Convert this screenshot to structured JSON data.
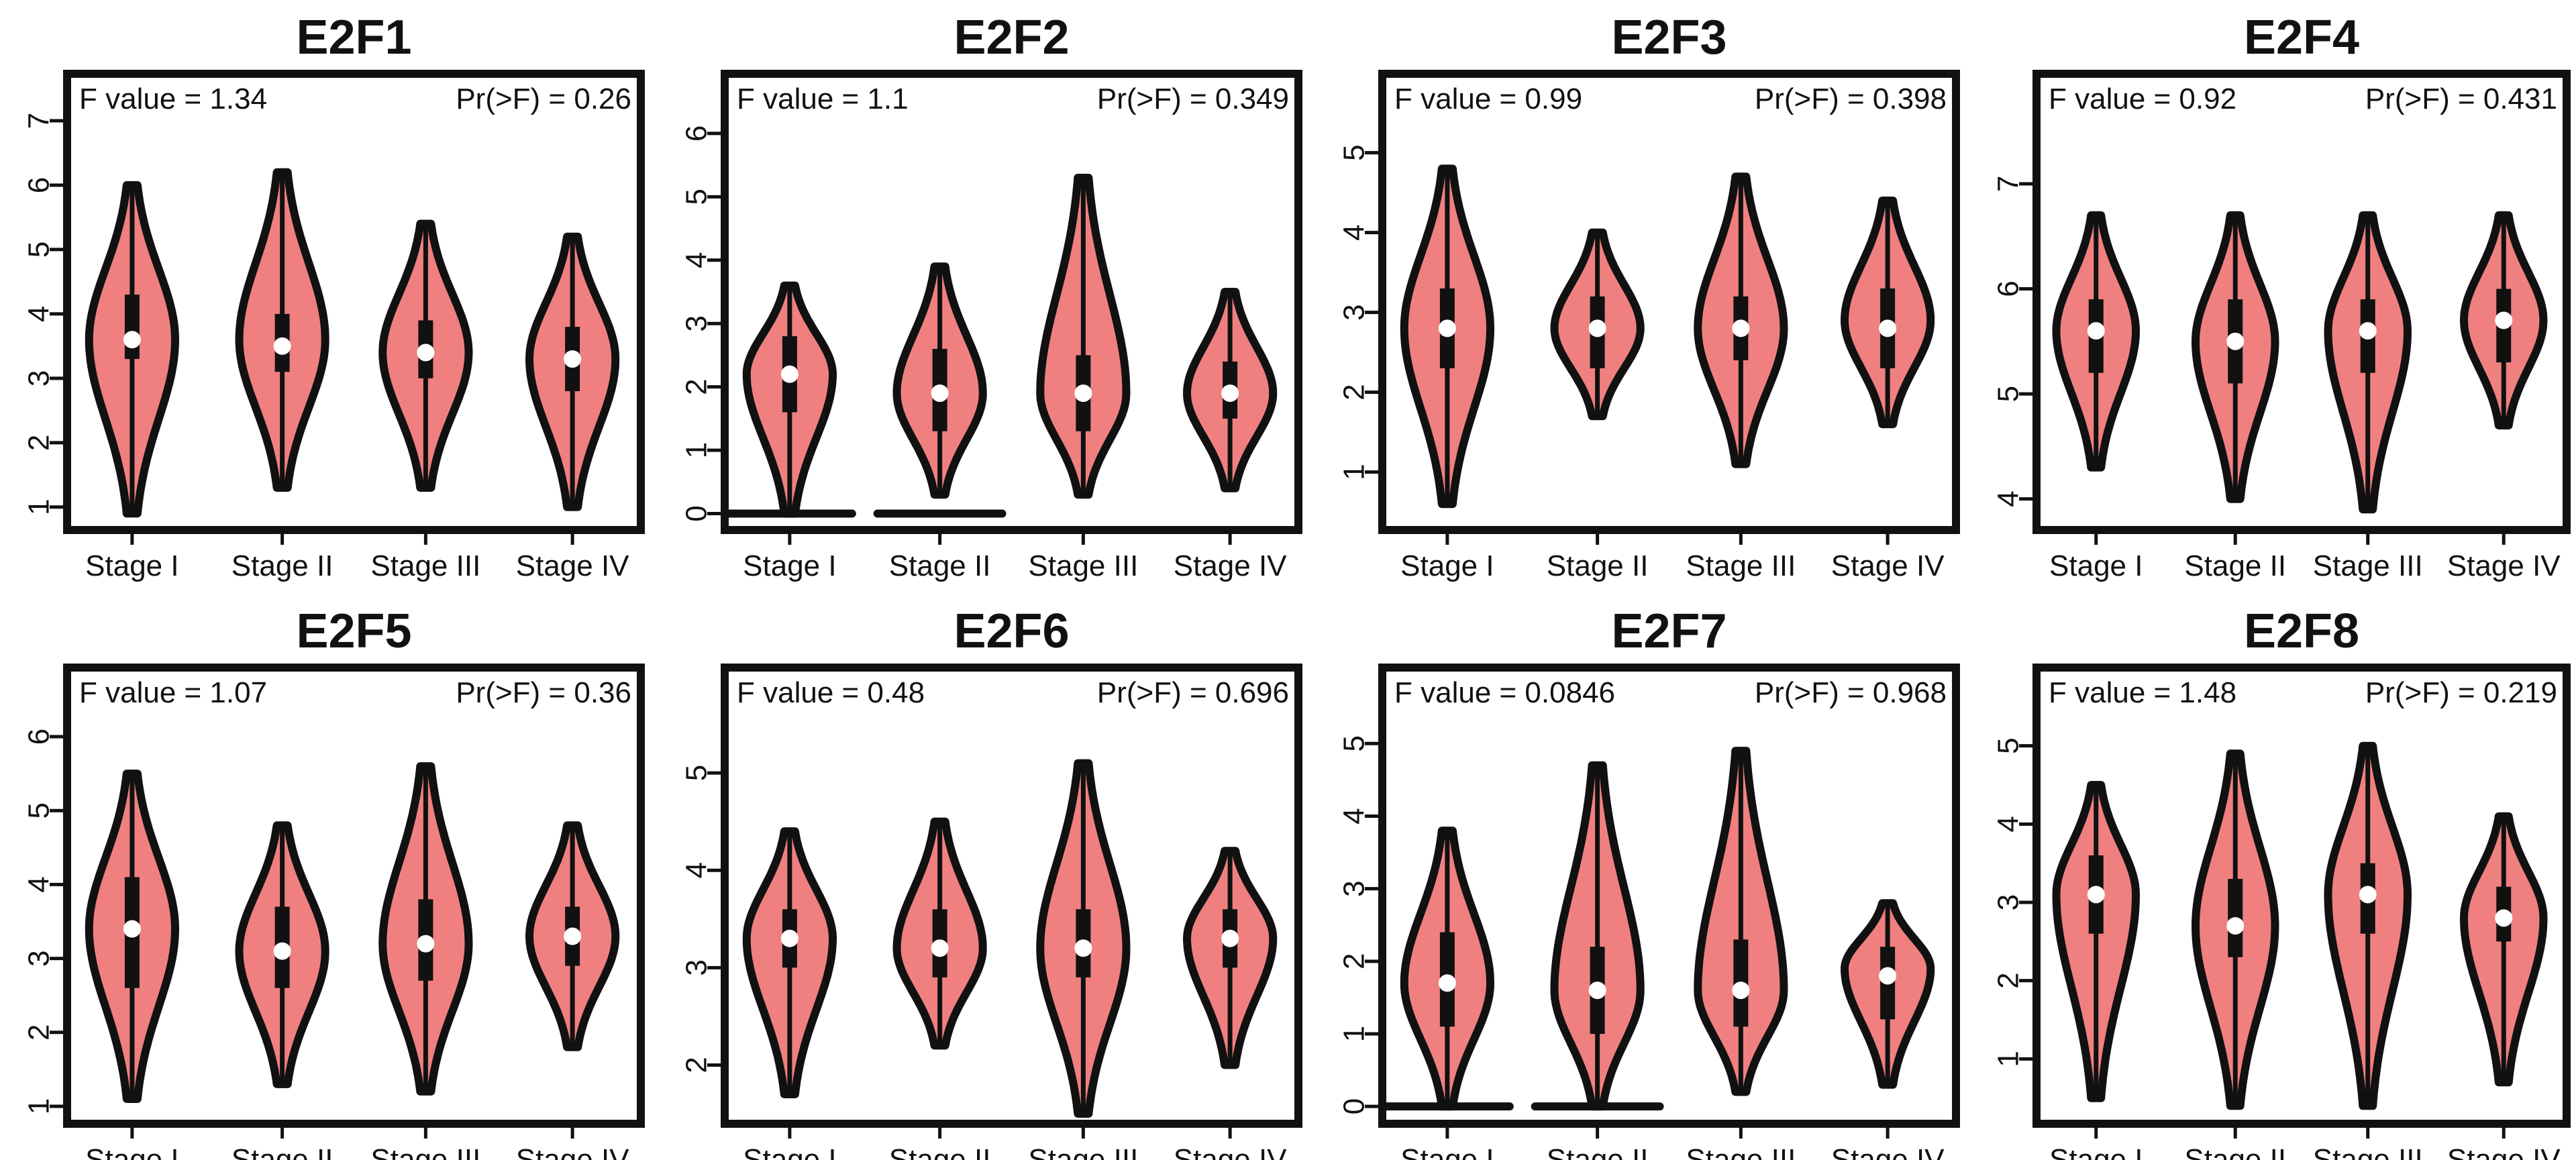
{
  "colors": {
    "violin_fill": "#F08080",
    "outline": "#111111",
    "median_dot": "#ffffff",
    "background": "#ffffff"
  },
  "chart_data": [
    {
      "type": "violin",
      "title": "E2F1",
      "ylim": [
        0.8,
        7
      ],
      "yticks": [
        1,
        2,
        3,
        4,
        5,
        6,
        7
      ],
      "categories": [
        "Stage I",
        "Stage II",
        "Stage III",
        "Stage IV"
      ],
      "f_value_label": "F value = 1.34",
      "pr_label": "Pr(>F) = 0.26",
      "violins": [
        {
          "min": 0.9,
          "max": 6.0,
          "q1": 3.3,
          "median": 3.6,
          "q3": 4.3,
          "peak": 3.6
        },
        {
          "min": 1.3,
          "max": 6.2,
          "q1": 3.1,
          "median": 3.5,
          "q3": 4.0,
          "peak": 3.6
        },
        {
          "min": 1.3,
          "max": 5.4,
          "q1": 3.0,
          "median": 3.4,
          "q3": 3.9,
          "peak": 3.4
        },
        {
          "min": 1.0,
          "max": 5.2,
          "q1": 2.8,
          "median": 3.3,
          "q3": 3.8,
          "peak": 3.3
        }
      ]
    },
    {
      "type": "violin",
      "title": "E2F2",
      "ylim": [
        -0.1,
        6.2
      ],
      "yticks": [
        0,
        1,
        2,
        3,
        4,
        5,
        6
      ],
      "categories": [
        "Stage I",
        "Stage II",
        "Stage III",
        "Stage IV"
      ],
      "f_value_label": "F value = 1.1",
      "pr_label": "Pr(>F) = 0.349",
      "violins": [
        {
          "min": 0.0,
          "max": 3.6,
          "q1": 1.6,
          "median": 2.2,
          "q3": 2.8,
          "peak": 2.2,
          "zero_bar": true
        },
        {
          "min": 0.3,
          "max": 3.9,
          "q1": 1.3,
          "median": 1.9,
          "q3": 2.6,
          "peak": 1.9,
          "zero_bar": true
        },
        {
          "min": 0.3,
          "max": 5.3,
          "q1": 1.3,
          "median": 1.9,
          "q3": 2.5,
          "peak": 1.9
        },
        {
          "min": 0.4,
          "max": 3.5,
          "q1": 1.5,
          "median": 1.9,
          "q3": 2.4,
          "peak": 1.9
        }
      ]
    },
    {
      "type": "violin",
      "title": "E2F3",
      "ylim": [
        0.4,
        5.4
      ],
      "yticks": [
        1,
        2,
        3,
        4,
        5
      ],
      "categories": [
        "Stage I",
        "Stage II",
        "Stage III",
        "Stage IV"
      ],
      "f_value_label": "F value = 0.99",
      "pr_label": "Pr(>F) = 0.398",
      "violins": [
        {
          "min": 0.6,
          "max": 4.8,
          "q1": 2.3,
          "median": 2.8,
          "q3": 3.3,
          "peak": 2.8
        },
        {
          "min": 1.7,
          "max": 4.0,
          "q1": 2.3,
          "median": 2.8,
          "q3": 3.2,
          "peak": 2.8
        },
        {
          "min": 1.1,
          "max": 4.7,
          "q1": 2.4,
          "median": 2.8,
          "q3": 3.2,
          "peak": 2.8
        },
        {
          "min": 1.6,
          "max": 4.4,
          "q1": 2.3,
          "median": 2.8,
          "q3": 3.3,
          "peak": 2.9
        }
      ]
    },
    {
      "type": "violin",
      "title": "E2F4",
      "ylim": [
        3.8,
        7.6
      ],
      "yticks": [
        4,
        5,
        6,
        7
      ],
      "categories": [
        "Stage I",
        "Stage II",
        "Stage III",
        "Stage IV"
      ],
      "f_value_label": "F value = 0.92",
      "pr_label": "Pr(>F) = 0.431",
      "violins": [
        {
          "min": 4.3,
          "max": 6.7,
          "q1": 5.2,
          "median": 5.6,
          "q3": 5.9,
          "peak": 5.6
        },
        {
          "min": 4.0,
          "max": 6.7,
          "q1": 5.1,
          "median": 5.5,
          "q3": 5.9,
          "peak": 5.5
        },
        {
          "min": 3.9,
          "max": 6.7,
          "q1": 5.2,
          "median": 5.6,
          "q3": 5.9,
          "peak": 5.6
        },
        {
          "min": 4.7,
          "max": 6.7,
          "q1": 5.3,
          "median": 5.7,
          "q3": 6.0,
          "peak": 5.7
        }
      ]
    },
    {
      "type": "violin",
      "title": "E2F5",
      "ylim": [
        0.9,
        6.3
      ],
      "yticks": [
        1,
        2,
        3,
        4,
        5,
        6
      ],
      "categories": [
        "Stage I",
        "Stage II",
        "Stage III",
        "Stage IV"
      ],
      "f_value_label": "F value = 1.07",
      "pr_label": "Pr(>F) = 0.36",
      "violins": [
        {
          "min": 1.1,
          "max": 5.5,
          "q1": 2.6,
          "median": 3.4,
          "q3": 4.1,
          "peak": 3.4
        },
        {
          "min": 1.3,
          "max": 4.8,
          "q1": 2.6,
          "median": 3.1,
          "q3": 3.7,
          "peak": 3.1
        },
        {
          "min": 1.2,
          "max": 5.6,
          "q1": 2.7,
          "median": 3.2,
          "q3": 3.8,
          "peak": 3.2
        },
        {
          "min": 1.8,
          "max": 4.8,
          "q1": 2.9,
          "median": 3.3,
          "q3": 3.7,
          "peak": 3.3
        }
      ]
    },
    {
      "type": "violin",
      "title": "E2F6",
      "ylim": [
        1.5,
        5.6
      ],
      "yticks": [
        2,
        3,
        4,
        5
      ],
      "categories": [
        "Stage I",
        "Stage II",
        "Stage III",
        "Stage IV"
      ],
      "f_value_label": "F value = 0.48",
      "pr_label": "Pr(>F) = 0.696",
      "violins": [
        {
          "min": 1.7,
          "max": 4.4,
          "q1": 3.0,
          "median": 3.3,
          "q3": 3.6,
          "peak": 3.3
        },
        {
          "min": 2.2,
          "max": 4.5,
          "q1": 2.9,
          "median": 3.2,
          "q3": 3.6,
          "peak": 3.2
        },
        {
          "min": 1.5,
          "max": 5.1,
          "q1": 2.9,
          "median": 3.2,
          "q3": 3.6,
          "peak": 3.2
        },
        {
          "min": 2.0,
          "max": 4.2,
          "q1": 3.0,
          "median": 3.3,
          "q3": 3.6,
          "peak": 3.3
        }
      ]
    },
    {
      "type": "violin",
      "title": "E2F7",
      "ylim": [
        -0.1,
        5.4
      ],
      "yticks": [
        0,
        1,
        2,
        3,
        4,
        5
      ],
      "categories": [
        "Stage I",
        "Stage II",
        "Stage III",
        "Stage IV"
      ],
      "f_value_label": "F value = 0.0846",
      "pr_label": "Pr(>F) = 0.968",
      "violins": [
        {
          "min": 0.0,
          "max": 3.8,
          "q1": 1.1,
          "median": 1.7,
          "q3": 2.4,
          "peak": 1.7,
          "zero_bar": true
        },
        {
          "min": 0.0,
          "max": 4.7,
          "q1": 1.0,
          "median": 1.6,
          "q3": 2.2,
          "peak": 1.6,
          "zero_bar": true
        },
        {
          "min": 0.2,
          "max": 4.9,
          "q1": 1.1,
          "median": 1.6,
          "q3": 2.3,
          "peak": 1.6
        },
        {
          "min": 0.3,
          "max": 2.8,
          "q1": 1.2,
          "median": 1.8,
          "q3": 2.2,
          "peak": 1.9
        }
      ]
    },
    {
      "type": "violin",
      "title": "E2F8",
      "ylim": [
        0.3,
        5.4
      ],
      "yticks": [
        1,
        2,
        3,
        4,
        5
      ],
      "categories": [
        "Stage I",
        "Stage II",
        "Stage III",
        "Stage IV"
      ],
      "f_value_label": "F value = 1.48",
      "pr_label": "Pr(>F) = 0.219",
      "violins": [
        {
          "min": 0.5,
          "max": 4.5,
          "q1": 2.6,
          "median": 3.1,
          "q3": 3.6,
          "peak": 3.1
        },
        {
          "min": 0.4,
          "max": 4.9,
          "q1": 2.3,
          "median": 2.7,
          "q3": 3.3,
          "peak": 2.7
        },
        {
          "min": 0.4,
          "max": 5.0,
          "q1": 2.6,
          "median": 3.1,
          "q3": 3.5,
          "peak": 3.1
        },
        {
          "min": 0.7,
          "max": 4.1,
          "q1": 2.5,
          "median": 2.8,
          "q3": 3.2,
          "peak": 2.8
        }
      ]
    }
  ]
}
